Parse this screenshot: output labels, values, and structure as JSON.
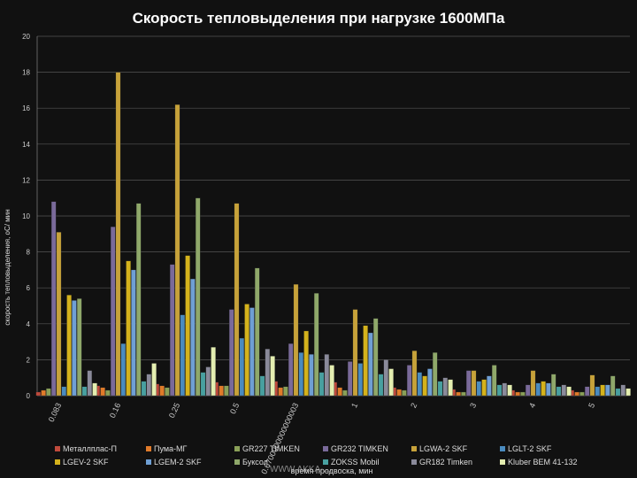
{
  "chart_data": {
    "type": "bar",
    "title": "Скорость тепловыделения при нагрузке 1600МПа",
    "ylabel": "скорость тепловыделения, оС/ мин",
    "xlabel": "время продвоска, мин",
    "ylim": [
      0,
      20
    ],
    "yticks": [
      0,
      2,
      4,
      6,
      8,
      10,
      12,
      14,
      16,
      18,
      20
    ],
    "grid": true,
    "legend_position": "bottom",
    "categories": [
      "0.083",
      "0.16",
      "0.25",
      "0.5",
      "0.6700000000000003",
      "1",
      "2",
      "3",
      "4",
      "5"
    ],
    "series": [
      {
        "name": "Металлплас-П",
        "color": "#c04a3c",
        "values": [
          0.2,
          0.55,
          0.65,
          0.75,
          0.8,
          0.75,
          0.45,
          0.35,
          0.3,
          0.3
        ]
      },
      {
        "name": "Пума-МГ",
        "color": "#e07b2a",
        "values": [
          0.3,
          0.45,
          0.55,
          0.55,
          0.45,
          0.45,
          0.35,
          0.2,
          0.2,
          0.2
        ]
      },
      {
        "name": "GR227 TIMKEN",
        "color": "#8aa058",
        "values": [
          0.4,
          0.3,
          0.45,
          0.55,
          0.5,
          0.3,
          0.3,
          0.2,
          0.2,
          0.2
        ]
      },
      {
        "name": "GR232 TIMKEN",
        "color": "#7a6a9a",
        "values": [
          10.8,
          9.4,
          7.3,
          4.8,
          2.9,
          1.9,
          1.7,
          1.4,
          0.6,
          0.5
        ]
      },
      {
        "name": "LGWA-2 SKF",
        "color": "#c7a23a",
        "values": [
          9.1,
          18.0,
          16.2,
          10.7,
          6.2,
          4.8,
          2.5,
          1.4,
          1.4,
          1.15
        ]
      },
      {
        "name": "LGLT-2 SKF",
        "color": "#4a8bbf",
        "values": [
          0.5,
          2.9,
          4.5,
          3.2,
          2.4,
          1.8,
          1.3,
          0.8,
          0.7,
          0.5
        ]
      },
      {
        "name": "LGEV-2 SKF",
        "color": "#d4b21c",
        "values": [
          5.6,
          7.5,
          7.8,
          5.1,
          3.6,
          3.9,
          1.1,
          0.9,
          0.8,
          0.6
        ]
      },
      {
        "name": "LGEM-2 SKF",
        "color": "#6f9fd4",
        "values": [
          5.3,
          7.0,
          6.5,
          4.9,
          2.3,
          3.5,
          1.5,
          1.1,
          0.7,
          0.6
        ]
      },
      {
        "name": "Буксол",
        "color": "#8fa86a",
        "values": [
          5.4,
          10.7,
          11.0,
          7.1,
          5.7,
          4.3,
          2.4,
          1.7,
          1.2,
          1.1
        ]
      },
      {
        "name": "ZOKSS Mobil",
        "color": "#48a0a0",
        "values": [
          0.5,
          0.8,
          1.3,
          1.1,
          1.3,
          1.2,
          0.8,
          0.6,
          0.5,
          0.4
        ]
      },
      {
        "name": "GR182 Timken",
        "color": "#8a8a9a",
        "values": [
          1.4,
          1.2,
          1.6,
          2.6,
          2.3,
          2.0,
          1.0,
          0.7,
          0.6,
          0.6
        ]
      },
      {
        "name": "Kluber BEM 41-132",
        "color": "#e4eeb0",
        "values": [
          0.7,
          1.8,
          2.7,
          2.2,
          1.7,
          1.5,
          0.9,
          0.6,
          0.5,
          0.4
        ]
      }
    ]
  },
  "watermark": "WWW.AKKA-..."
}
